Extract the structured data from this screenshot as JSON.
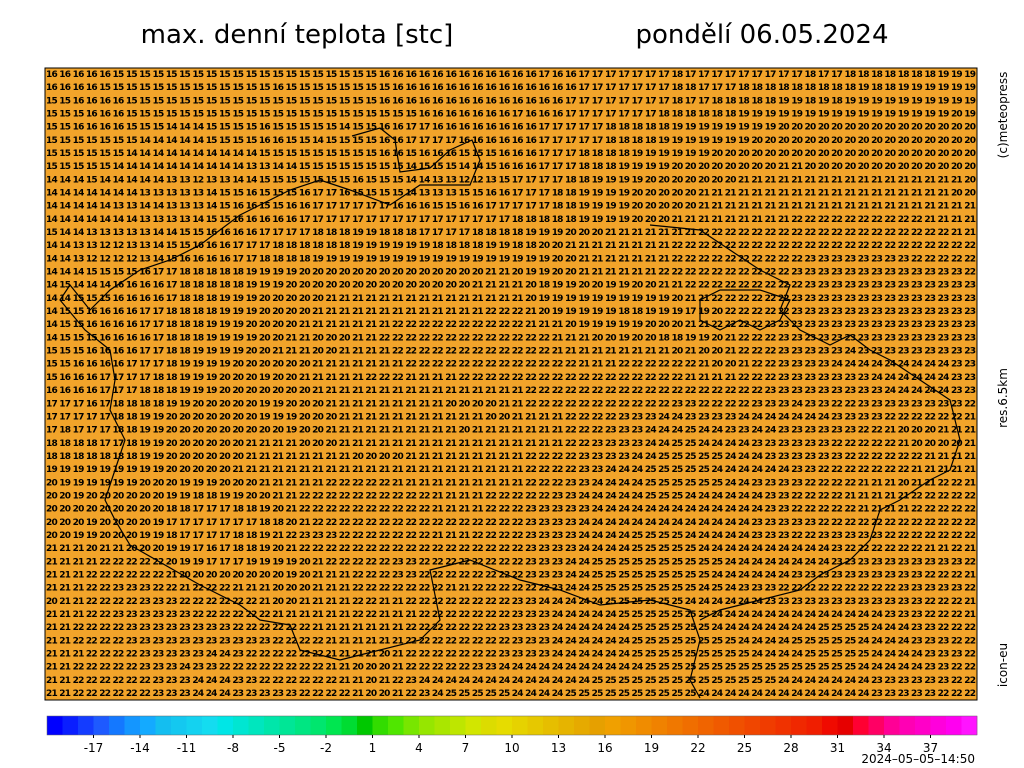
{
  "header": {
    "title": "max. denní teplota [stc]",
    "date": "pondělí 06.05.2024"
  },
  "side": {
    "copyright": "(c)meteopress",
    "resolution": "res.6.5km",
    "model": "icon-eu"
  },
  "timestamp": "2024–05–05–14:50",
  "map": {
    "background": "#f2a42a",
    "rows": [
      "16 16 16 16 16 15 15 15 15 15 15 15 15 15 15 15 15 15 15 15 15 15 15 15 15 16 16 16 16 16 16 16 16 16 16 16 16 17 16 16 17 17 17 17 17 17 17 18 17 17 17 17 17 17 17 17 17 18 17 17 18 18 18 18 18 18 18 19 19 19",
      "16 16 16 16 15 15 15 15 15 15 15 15 15 15 15 15 15 16 15 15 15 15 15 15 15 15 16 16 16 16 16 16 16 16 16 16 16 16 16 16 17 17 17 17 17 17 17 18 18 17 17 17 18 18 18 18 18 18 18 18 18 19 18 18 19 19 19 19 19 19",
      "15 15 16 16 16 16 15 15 15 15 15 15 15 15 15 15 15 15 15 15 15 15 15 15 15 16 16 16 16 16 16 16 16 16 16 16 16 16 16 17 17 17 17 17 17 17 17 18 17 17 18 18 18 18 18 19 19 18 19 18 19 19 19 19 19 19 19 19 19 19",
      "15 15 15 16 16 16 15 15 15 15 15 15 15 15 15 15 15 15 15 15 15 15 15 15 15 15 15 15 16 16 16 16 16 16 16 17 16 16 16 17 17 17 17 17 17 17 18 18 18 18 18 18 19 19 19 19 19 19 19 19 19 19 19 19 19 19 19 19 20 19",
      "15 15 16 16 16 16 15 15 15 14 14 14 15 15 15 15 16 15 15 15 15 15 14 15 15 16 16 17 17 16 16 16 16 16 16 16 16 17 17 17 17 17 18 18 18 18 18 19 19 19 19 19 19 19 19 20 20 20 20 20 20 20 20 20 20 20 20 20 20 20",
      "15 15 15 15 15 15 15 14 14 14 14 14 15 15 15 15 16 16 15 15 14 15 15 15 15 16 16 17 17 17 17 16 16 16 16 16 16 17 17 17 17 17 18 18 18 18 19 19 19 19 19 19 19 20 20 20 20 20 20 20 20 20 20 20 20 20 20 20 20 20",
      "15 15 15 15 15 15 14 14 14 14 14 14 14 14 14 14 15 15 15 15 15 15 15 15 15 16 16 15 16 16 16 15 15 15 16 16 16 17 17 17 18 18 18 18 19 19 19 19 19 19 20 20 20 20 20 20 20 20 20 20 20 20 20 20 20 20 20 20 20 20",
      "15 15 15 15 15 14 14 14 14 14 14 14 14 14 14 13 13 14 14 15 15 15 15 15 15 15 15 14 15 15 15 14 14 15 16 16 16 17 17 17 18 18 18 19 19 19 19 20 20 20 20 20 20 20 20 21 21 20 20 20 20 20 20 20 20 20 20 20 20 20",
      "14 14 14 15 14 14 14 14 14 13 13 12 13 13 14 14 15 15 15 15 15 15 15 16 15 15 15 14 14 13 13 12 12 13 15 17 17 17 17 18 18 19 19 19 19 20 20 20 20 20 20 20 21 21 21 21 21 21 21 21 21 21 21 21 21 21 21 21 21 20",
      "14 14 14 14 14 14 14 13 13 13 13 13 14 15 15 16 15 15 15 16 17 17 16 15 15 15 15 14 13 13 13 15 15 16 16 17 17 17 18 18 19 19 19 19 20 20 20 20 20 21 21 21 21 21 21 21 21 21 21 21 21 21 21 21 21 21 21 21 20 20",
      "14 14 14 14 14 13 13 14 14 13 13 13 14 15 16 16 15 15 16 16 17 17 17 17 17 17 16 16 16 15 15 16 16 17 17 17 17 17 18 18 19 19 19 19 20 20 20 20 20 21 21 21 21 21 21 21 21 21 21 21 21 21 21 21 21 21 21 21 21 21",
      "14 14 14 14 14 14 14 13 13 13 13 14 15 15 16 16 16 16 16 17 17 17 17 17 17 17 17 17 17 17 17 17 17 17 17 18 18 18 18 18 19 19 19 19 20 20 20 21 21 21 21 21 21 21 21 21 22 22 22 22 22 22 22 22 22 22 21 21 21 21",
      "15 14 14 13 13 13 13 13 14 14 15 15 16 16 16 16 17 17 17 17 18 18 18 19 19 18 18 18 17 17 17 17 18 18 18 18 19 19 19 20 20 20 21 21 21 21 21 21 21 22 22 22 22 22 22 22 22 22 22 22 22 22 22 22 22 22 22 22 21 21",
      "14 14 13 13 12 12 13 13 14 15 15 16 16 16 17 17 17 18 18 18 18 18 18 19 19 19 19 19 19 18 18 18 18 19 19 18 18 20 20 21 21 21 21 21 21 21 21 22 22 22 22 22 22 22 22 22 22 22 22 22 22 22 22 22 22 22 22 22 22 22",
      "14 14 13 12 12 12 12 13 14 15 16 16 16 16 17 17 18 18 18 18 19 19 19 19 19 19 19 19 19 19 19 19 19 19 19 19 19 19 20 20 21 21 21 21 21 21 21 22 22 22 22 22 22 22 22 22 22 23 23 23 23 23 23 23 23 22 22 22 22 22",
      "14 14 14 15 15 15 15 16 17 17 18 18 18 18 18 19 19 19 19 20 20 20 20 20 20 20 20 20 20 20 20 20 20 21 21 20 19 19 20 20 21 21 21 21 21 21 22 22 22 22 22 22 22 22 22 22 23 23 23 23 23 23 23 23 23 23 23 23 23 22",
      "14 15 14 14 14 16 16 16 16 17 18 18 18 18 18 19 19 19 20 20 20 20 20 20 20 20 20 20 20 20 20 20 21 21 21 21 20 18 19 19 20 20 19 19 20 20 21 21 22 22 22 22 22 22 22 22 22 23 23 23 23 23 23 23 23 23 23 23 23 23",
      "14 14 15 15 15 16 16 16 16 17 18 18 18 19 19 19 20 20 20 20 20 21 21 21 21 21 21 21 21 21 21 21 21 21 21 21 20 19 19 19 19 19 19 19 19 19 19 20 21 21 22 22 22 22 22 22 23 23 23 23 23 23 23 23 23 23 23 23 23 23",
      "14 15 15 16 16 16 16 17 17 18 18 18 18 19 19 19 20 20 20 20 21 21 21 21 21 21 21 21 21 21 21 21 21 22 22 22 21 20 19 19 19 19 19 18 18 19 19 19 17 19 20 22 22 22 22 22 23 23 23 23 23 23 23 23 23 23 23 23 23 23",
      "14 15 15 16 16 16 16 17 17 18 18 18 19 19 19 20 20 20 20 21 21 21 21 21 21 21 22 22 22 22 22 22 22 22 22 22 21 21 21 20 19 19 19 19 19 20 20 20 21 21 22 22 22 22 23 23 23 23 23 23 23 23 23 23 23 23 23 23 23 23",
      "14 15 15 15 16 16 16 16 17 18 18 18 19 19 19 19 20 20 21 21 20 20 20 21 21 22 22 22 22 22 22 22 22 22 22 22 22 22 21 21 21 20 20 19 20 20 18 18 19 19 20 21 22 22 22 23 23 23 23 23 23 23 23 23 23 23 23 23 23 23",
      "15 15 15 16 16 16 16 17 17 18 18 19 19 19 19 20 20 21 21 21 20 20 21 21 21 21 22 22 22 22 22 22 22 22 22 22 22 22 21 21 21 21 21 21 21 21 21 20 21 20 20 21 22 22 22 23 23 23 23 23 24 23 23 23 23 23 23 23 23 23",
      "15 15 16 16 16 16 17 17 17 18 19 19 19 19 20 20 20 20 20 20 21 21 21 21 21 21 21 22 22 22 22 22 22 22 22 22 22 22 22 22 21 21 21 22 22 22 22 22 22 21 20 20 21 22 22 23 23 23 23 24 24 24 24 24 24 24 24 24 23 23",
      "15 16 16 16 17 17 17 17 18 18 19 19 19 20 20 20 19 20 20 21 21 21 21 21 22 22 22 21 21 21 21 22 22 22 22 22 22 22 22 22 22 22 22 22 22 22 22 22 21 21 21 21 22 22 22 23 23 23 23 23 23 23 24 24 24 24 24 24 23 23",
      "16 16 16 16 17 17 17 18 18 18 19 19 19 20 20 20 20 20 20 20 21 21 21 21 21 21 21 21 21 21 21 21 21 21 21 21 22 22 22 22 22 22 22 22 22 22 22 22 22 22 22 22 22 22 23 23 23 23 23 23 23 23 23 24 24 24 24 24 23 23",
      "17 17 17 16 17 18 18 18 18 19 19 20 20 20 20 20 19 19 20 20 20 21 21 21 21 21 21 21 21 21 20 20 20 20 21 21 22 22 22 22 22 22 22 22 22 22 22 23 23 22 22 22 22 23 23 23 24 23 23 22 22 23 23 23 23 23 23 23 23 22",
      "17 17 17 17 17 18 18 19 19 20 20 20 20 20 20 20 19 19 19 20 20 20 21 21 21 21 21 21 21 21 21 21 21 20 20 21 21 21 21 22 22 22 22 23 23 23 24 24 23 23 23 23 24 24 24 24 24 24 24 23 23 23 23 22 22 22 22 22 22 21",
      "17 18 17 17 17 18 18 19 19 20 20 20 20 20 20 20 20 20 19 20 20 21 21 21 21 21 21 21 21 21 21 20 21 21 21 21 21 21 21 22 22 22 23 23 23 24 24 24 25 24 24 23 23 24 24 23 23 23 23 23 23 22 22 21 20 20 20 21 21 21",
      "18 18 18 18 17 17 18 19 19 20 20 20 20 20 20 21 21 21 21 20 20 20 21 21 21 21 21 21 21 21 21 21 21 21 21 21 21 21 21 22 22 23 23 23 23 24 24 25 25 24 24 24 24 23 23 23 23 23 23 22 22 22 22 22 21 20 20 20 20 21",
      "18 18 18 18 18 18 18 19 19 20 20 20 20 20 20 21 21 21 21 21 21 21 21 20 20 20 20 21 21 21 21 21 21 21 21 21 22 22 22 22 23 23 23 23 24 24 25 25 25 25 25 24 24 24 23 23 23 23 23 23 22 22 22 22 22 22 21 21 21 21",
      "19 19 19 19 19 19 19 19 19 20 20 20 20 20 21 21 21 21 21 21 21 21 21 21 21 21 21 21 21 21 21 21 21 21 21 21 22 22 22 22 23 23 24 24 24 25 25 25 25 25 24 24 24 24 24 24 23 23 22 22 22 22 22 22 22 21 21 21 21 21",
      "20 19 19 19 19 19 19 20 20 20 19 19 19 20 20 20 21 21 21 21 21 22 22 22 22 22 21 21 21 21 21 21 21 21 21 21 22 22 22 23 23 24 24 24 24 25 25 25 25 25 25 24 24 23 23 23 23 22 22 22 22 21 21 21 20 21 21 22 22 21",
      "20 20 19 20 20 20 20 20 20 19 19 18 18 19 19 20 20 21 21 22 22 22 22 22 22 22 22 22 22 21 21 21 21 22 22 22 22 22 23 23 24 24 24 24 24 25 25 25 24 24 24 24 24 24 23 23 22 22 22 22 21 21 21 21 21 22 22 22 22 22",
      "20 20 20 20 20 20 20 20 20 18 18 17 17 17 18 18 19 20 21 22 22 22 22 22 22 22 22 22 22 21 21 21 21 22 22 22 23 23 23 23 23 24 24 24 24 24 24 24 24 24 24 24 24 24 23 23 22 22 22 22 22 21 21 21 21 22 22 22 22 22",
      "20 20 20 19 20 20 20 20 19 17 17 17 17 17 17 17 18 18 20 21 22 22 22 22 22 22 22 22 22 22 22 22 22 22 22 22 23 23 23 23 24 24 24 24 24 24 24 24 24 24 24 24 24 23 23 23 23 23 22 22 22 22 22 22 22 22 22 22 22 22",
      "20 20 19 19 20 20 20 19 19 18 17 17 17 17 18 18 19 21 22 23 23 23 22 22 22 22 22 22 22 21 21 21 22 22 22 22 23 23 23 23 24 24 24 24 25 25 25 25 24 24 24 24 24 23 23 23 22 22 23 23 23 23 23 22 22 22 22 22 22 22",
      "21 21 21 20 21 21 20 20 20 19 19 17 16 17 18 18 19 20 21 22 22 22 22 22 22 22 22 22 22 22 22 22 22 22 22 22 23 23 23 23 24 24 24 24 25 25 25 25 25 24 24 24 24 24 24 24 24 24 24 23 22 22 22 22 22 22 21 21 22 21",
      "21 21 21 21 22 22 22 22 22 20 19 19 17 17 17 19 19 19 19 20 21 22 22 22 22 22 23 23 22 22 22 22 22 22 22 22 23 23 23 24 24 25 25 25 25 25 25 25 25 25 25 24 24 24 24 24 24 24 24 23 23 23 23 23 23 23 23 23 23 22",
      "21 21 21 22 22 22 22 22 22 21 20 20 20 20 20 20 20 20 19 20 21 21 21 22 22 22 23 23 22 22 22 22 22 22 22 22 23 23 23 24 24 25 25 25 25 25 25 25 25 25 24 24 24 24 24 24 23 23 23 23 23 23 23 23 23 23 22 22 22 21",
      "21 21 21 22 22 23 23 23 22 22 21 22 22 22 21 21 21 20 20 20 21 21 21 22 22 22 22 22 22 22 21 21 22 22 22 22 22 22 23 24 24 25 25 25 25 25 25 25 25 24 25 24 23 23 23 22 22 22 22 22 22 22 22 22 23 23 23 23 23 22",
      "20 21 21 22 22 22 22 23 23 23 22 22 22 22 22 22 21 20 20 21 21 21 21 22 22 21 21 22 22 22 22 22 22 22 22 23 23 24 24 24 24 24 25 25 25 25 25 25 24 24 24 24 24 24 23 23 23 23 23 23 23 23 23 23 23 23 22 22 22 21",
      "21 21 21 22 22 23 23 23 23 23 23 22 22 22 22 22 22 21 21 21 21 21 21 22 22 21 21 21 22 22 22 22 22 22 22 23 23 23 24 24 24 24 24 25 25 25 25 25 25 25 24 24 24 24 24 24 24 24 24 24 24 24 24 23 23 23 22 22 22 21",
      "21 21 22 22 22 22 23 23 23 23 23 23 23 23 22 22 22 22 22 22 21 21 21 21 21 21 21 22 22 22 22 22 22 22 23 23 23 23 24 24 24 24 24 24 25 25 25 25 25 25 24 24 24 24 24 24 24 24 25 25 25 25 24 24 24 23 23 22 22 22",
      "21 21 22 22 22 22 23 23 23 23 23 23 23 23 23 23 23 22 22 22 22 21 21 21 21 21 21 22 22 22 22 22 22 22 22 23 23 23 24 24 24 24 24 24 25 25 25 25 25 25 25 25 24 24 24 24 25 25 25 25 25 24 24 24 24 23 23 23 22 22",
      "21 21 21 22 22 22 22 23 23 23 23 23 24 24 23 22 22 22 22 22 22 21 21 21 21 20 21 22 22 22 22 22 22 22 23 23 23 23 24 24 24 24 24 24 25 25 25 25 25 25 25 25 25 24 24 24 24 25 25 25 25 25 24 24 24 24 23 23 23 22",
      "21 21 22 22 22 22 22 23 23 23 24 23 23 22 22 22 22 22 22 22 22 21 21 20 20 20 21 22 22 22 22 22 23 23 24 24 24 24 24 24 24 24 24 24 24 25 25 25 25 25 25 25 25 25 25 25 25 25 25 25 25 24 24 24 24 24 23 23 22 22",
      "21 21 22 22 22 22 22 22 23 23 23 24 24 24 23 23 22 22 22 22 22 22 21 21 20 21 22 23 24 24 24 24 24 24 24 24 24 24 24 24 24 25 25 25 25 25 25 25 25 25 25 25 25 25 25 24 24 24 24 24 24 24 23 23 23 23 23 23 22 22",
      "21 21 22 22 22 22 22 22 23 23 23 24 24 24 23 23 23 23 23 22 22 22 22 21 20 20 21 22 23 24 25 25 25 25 25 24 24 24 24 25 25 25 25 25 25 25 25 25 25 24 24 24 24 24 24 24 24 24 24 24 24 24 23 23 23 23 23 22 22 22"
    ]
  },
  "colorbar": {
    "xlim": [
      -20,
      40
    ],
    "xticks": [
      -17,
      -14,
      -11,
      -8,
      -5,
      -2,
      1,
      4,
      7,
      10,
      13,
      16,
      19,
      22,
      25,
      28,
      31,
      34,
      37
    ],
    "colors": [
      "#0000ff",
      "#0a1eff",
      "#143cff",
      "#1e5aff",
      "#1478ff",
      "#1496ff",
      "#14aaff",
      "#14bef0",
      "#14c8f0",
      "#14d2f0",
      "#14dcf0",
      "#00e6e6",
      "#00e6d2",
      "#00e6be",
      "#00e6aa",
      "#00e696",
      "#00e682",
      "#00e66e",
      "#00e650",
      "#00dc32",
      "#00c800",
      "#32dc00",
      "#50e600",
      "#78e600",
      "#96e600",
      "#aae600",
      "#bee600",
      "#d2e600",
      "#dcdc00",
      "#e6dc00",
      "#e6d200",
      "#e6c800",
      "#e6be00",
      "#e6b400",
      "#e6aa00",
      "#e6a000",
      "#f0a000",
      "#f09600",
      "#f08c00",
      "#f08200",
      "#f07800",
      "#f06e00",
      "#f06400",
      "#f05a00",
      "#f05000",
      "#f04600",
      "#f03c00",
      "#f03200",
      "#f02800",
      "#f01e00",
      "#f00a00",
      "#e60000",
      "#ff0032",
      "#ff0064",
      "#ff0096",
      "#ff00b4",
      "#ff00c8",
      "#ff00dc",
      "#ff00f0",
      "#ff14ff"
    ]
  }
}
